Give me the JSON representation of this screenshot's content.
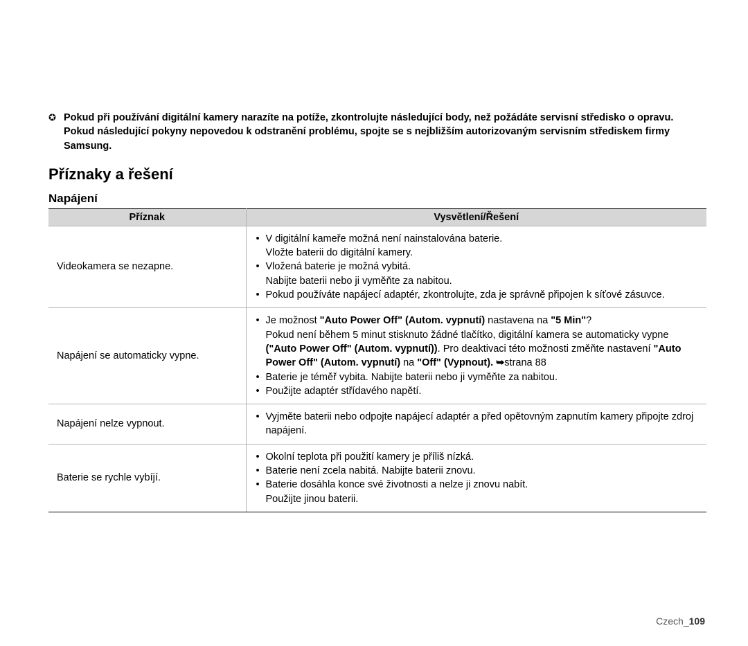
{
  "intro": {
    "line1": "Pokud při používání digitální kamery narazíte na potíže, zkontrolujte následující body, než požádáte servisní středisko o opravu.",
    "line2": "Pokud následující pokyny nepovedou k odstranění problému, spojte se s nejbližším autorizovaným servisním střediskem firmy Samsung."
  },
  "section_title": "Příznaky a řešení",
  "subsection_title": "Napájení",
  "table": {
    "header_symptom": "Příznak",
    "header_solution": "Vysvětlení/Řešení",
    "rows": [
      {
        "symptom": "Videokamera se nezapne.",
        "items": [
          {
            "text": "V digitální kameře možná není nainstalována baterie.",
            "sub": "Vložte baterii do digitální kamery."
          },
          {
            "text": "Vložená baterie je možná vybitá.",
            "sub": "Nabijte baterii nebo ji vyměňte za nabitou."
          },
          {
            "text": "Pokud používáte napájecí adaptér, zkontrolujte, zda je správně připojen k síťové zásuvce."
          }
        ]
      },
      {
        "symptom": "Napájení se automaticky vypne.",
        "items": [
          {
            "html": "Je možnost <b>\"Auto Power Off\" (Autom. vypnutí)</b> nastavena na <b>\"5 Min\"</b>?<br>Pokud není během 5 minut stisknuto žádné tlačítko, digitální kamera se automaticky vypne <b>(\"Auto Power Off\" (Autom. vypnutí))</b>. Pro deaktivaci této možnosti změňte nastavení <b>\"Auto Power Off\" (Autom. vypnutí)</b> na <b>\"Off\" (Vypnout). <span class=\"arrow\">➥</span></b>strana 88"
          },
          {
            "text": "Baterie je téměř vybita. Nabijte baterii nebo ji vyměňte za nabitou."
          },
          {
            "text": "Použijte adaptér střídavého napětí."
          }
        ]
      },
      {
        "symptom": "Napájení nelze vypnout.",
        "items": [
          {
            "text": "Vyjměte baterii nebo odpojte napájecí adaptér a před opětovným zapnutím kamery připojte zdroj napájení."
          }
        ]
      },
      {
        "symptom": "Baterie se rychle vybíjí.",
        "items": [
          {
            "text": "Okolní teplota při použití kamery je příliš nízká."
          },
          {
            "text": "Baterie není zcela nabitá. Nabijte baterii znovu."
          },
          {
            "text": "Baterie dosáhla konce své životnosti a nelze ji znovu nabít.",
            "sub": "Použijte jinou baterii."
          }
        ]
      }
    ]
  },
  "footer": {
    "lang": "Czech",
    "sep": "_",
    "page": "109"
  }
}
